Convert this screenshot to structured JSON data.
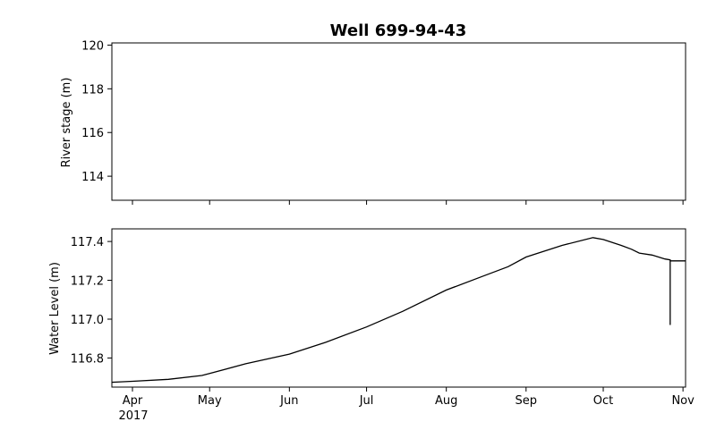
{
  "title": "Well 699-94-43",
  "chart_data": [
    {
      "type": "line",
      "panel": "top",
      "title": "Well 699-94-43",
      "ylabel": "River stage (m)",
      "xlabel": "",
      "ylim": [
        112.9,
        120.1
      ],
      "yticks": [
        114,
        116,
        118,
        120
      ],
      "ytick_labels": [
        "114",
        "116",
        "118",
        "120"
      ],
      "series": []
    },
    {
      "type": "line",
      "panel": "bottom",
      "ylabel": "Water Level (m)",
      "xlabel": "",
      "xlim": [
        "2017-03-24",
        "2017-11-02"
      ],
      "ylim": [
        116.65,
        117.465
      ],
      "yticks": [
        116.8,
        117.0,
        117.2,
        117.4
      ],
      "ytick_labels": [
        "116.8",
        "117.0",
        "117.2",
        "117.4"
      ],
      "xticks": [
        "2017-04-01",
        "2017-05-01",
        "2017-06-01",
        "2017-07-01",
        "2017-08-01",
        "2017-09-01",
        "2017-10-01",
        "2017-11-01"
      ],
      "xtick_labels": [
        "Apr",
        "May",
        "Jun",
        "Jul",
        "Aug",
        "Sep",
        "Oct",
        "Nov"
      ],
      "year_label": "2017",
      "color": "#000000",
      "series": [
        {
          "x": [
            "2017-03-24",
            "2017-04-01",
            "2017-04-15",
            "2017-04-28",
            "2017-05-01",
            "2017-05-15",
            "2017-06-01",
            "2017-06-15",
            "2017-07-01",
            "2017-07-15",
            "2017-08-01",
            "2017-08-15",
            "2017-08-25",
            "2017-09-01",
            "2017-09-15",
            "2017-09-27",
            "2017-10-01",
            "2017-10-08",
            "2017-10-12",
            "2017-10-15",
            "2017-10-20",
            "2017-10-25",
            "2017-10-27",
            "2017-10-27",
            "2017-10-27",
            "2017-10-28",
            "2017-11-01",
            "2017-11-02"
          ],
          "y": [
            116.675,
            116.68,
            116.69,
            116.71,
            116.72,
            116.77,
            116.82,
            116.88,
            116.96,
            117.04,
            117.15,
            117.22,
            117.27,
            117.32,
            117.38,
            117.42,
            117.41,
            117.38,
            117.36,
            117.34,
            117.33,
            117.31,
            117.305,
            116.97,
            117.3,
            117.3,
            117.3,
            117.3
          ]
        }
      ]
    }
  ]
}
